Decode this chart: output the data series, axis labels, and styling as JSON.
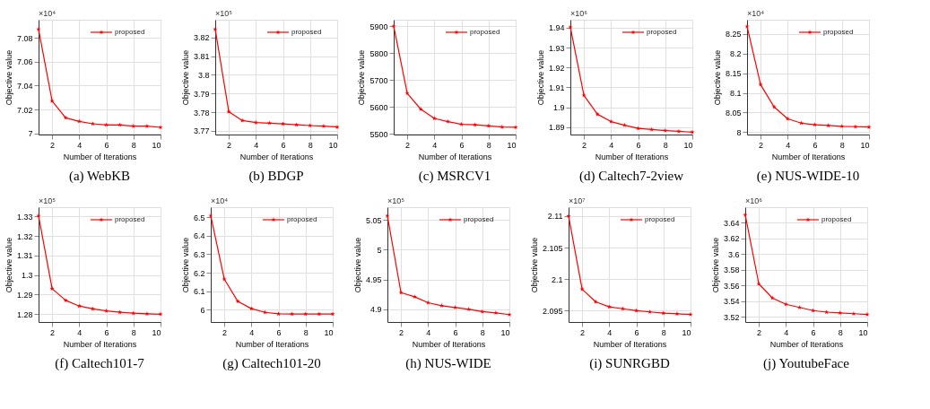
{
  "chart_data": [
    {
      "type": "line",
      "title": "(a) WebKB",
      "xlabel": "Number of Iterations",
      "ylabel": "Objective value",
      "annotations": [
        "×10⁴"
      ],
      "x": [
        1,
        2,
        3,
        4,
        5,
        6,
        7,
        8,
        9,
        10
      ],
      "xlim": [
        1,
        10
      ],
      "xticks": [
        2,
        4,
        6,
        8,
        10
      ],
      "ylim": [
        6.999,
        7.095
      ],
      "yticks": [
        7,
        7.02,
        7.04,
        7.06,
        7.08
      ],
      "grid": true,
      "legend": "top right",
      "marker": "star",
      "series": [
        {
          "name": "proposed",
          "color": "#ff0000",
          "values": [
            7.087,
            7.027,
            7.013,
            7.01,
            7.008,
            7.007,
            7.007,
            7.006,
            7.006,
            7.005
          ]
        }
      ]
    },
    {
      "type": "line",
      "title": "(b) BDGP",
      "xlabel": "Number of Iterations",
      "ylabel": "Objective value",
      "annotations": [
        "×10⁵"
      ],
      "x": [
        1,
        2,
        3,
        4,
        5,
        6,
        7,
        8,
        9,
        10
      ],
      "xlim": [
        1,
        10
      ],
      "xticks": [
        2,
        4,
        6,
        8,
        10
      ],
      "ylim": [
        3.768,
        3.8295
      ],
      "yticks": [
        3.77,
        3.78,
        3.79,
        3.8,
        3.81,
        3.82
      ],
      "grid": true,
      "legend": "top right",
      "marker": "star",
      "series": [
        {
          "name": "proposed",
          "color": "#ff0000",
          "values": [
            3.8244,
            3.7802,
            3.7755,
            3.7744,
            3.7741,
            3.7737,
            3.7732,
            3.7728,
            3.7725,
            3.772
          ]
        }
      ]
    },
    {
      "type": "line",
      "title": "(c) MSRCV1",
      "xlabel": "Number of Iterations",
      "ylabel": "Objective value",
      "x": [
        1,
        2,
        3,
        4,
        5,
        6,
        7,
        8,
        9,
        10
      ],
      "xlim": [
        1,
        10
      ],
      "xticks": [
        2,
        4,
        6,
        8,
        10
      ],
      "ylim": [
        5498,
        5924
      ],
      "yticks": [
        5500,
        5600,
        5700,
        5800,
        5900
      ],
      "grid": true,
      "legend": "top right",
      "marker": "star",
      "series": [
        {
          "name": "proposed",
          "color": "#ff0000",
          "values": [
            5900,
            5651,
            5592,
            5558,
            5546,
            5536,
            5534,
            5530,
            5526,
            5525
          ]
        }
      ]
    },
    {
      "type": "line",
      "title": "(d) Caltech7-2view",
      "xlabel": "Number of Iterations",
      "ylabel": "Objective value",
      "annotations": [
        "×10⁶"
      ],
      "x": [
        1,
        2,
        3,
        4,
        5,
        6,
        7,
        8,
        9,
        10
      ],
      "xlim": [
        1,
        10
      ],
      "xticks": [
        2,
        4,
        6,
        8,
        10
      ],
      "ylim": [
        1.8863,
        1.944
      ],
      "yticks": [
        1.89,
        1.9,
        1.91,
        1.92,
        1.93,
        1.94
      ],
      "grid": true,
      "legend": "top right",
      "marker": "star",
      "series": [
        {
          "name": "proposed",
          "color": "#ff0000",
          "values": [
            1.9402,
            1.906,
            1.8965,
            1.8928,
            1.891,
            1.8894,
            1.8888,
            1.8883,
            1.8879,
            1.8875
          ]
        }
      ]
    },
    {
      "type": "line",
      "title": "(e) NUS-WIDE-10",
      "xlabel": "Number of Iterations",
      "ylabel": "Objective value",
      "annotations": [
        "×10⁴"
      ],
      "x": [
        1,
        2,
        3,
        4,
        5,
        6,
        7,
        8,
        9,
        10
      ],
      "xlim": [
        1,
        10
      ],
      "xticks": [
        2,
        4,
        6,
        8,
        10
      ],
      "ylim": [
        7.994,
        8.286
      ],
      "yticks": [
        8,
        8.05,
        8.1,
        8.15,
        8.2,
        8.25
      ],
      "grid": true,
      "legend": "top right",
      "marker": "star",
      "series": [
        {
          "name": "proposed",
          "color": "#ff0000",
          "values": [
            8.269,
            8.121,
            8.064,
            8.034,
            8.023,
            8.019,
            8.017,
            8.015,
            8.014,
            8.013
          ]
        }
      ]
    },
    {
      "type": "line",
      "title": "(f) Caltech101-7",
      "xlabel": "Number of Iterations",
      "ylabel": "Objective value",
      "annotations": [
        "×10⁵"
      ],
      "x": [
        1,
        2,
        3,
        4,
        5,
        6,
        7,
        8,
        9,
        10
      ],
      "xlim": [
        1,
        10
      ],
      "xticks": [
        2,
        4,
        6,
        8,
        10
      ],
      "ylim": [
        1.2759,
        1.3348
      ],
      "yticks": [
        1.28,
        1.29,
        1.3,
        1.31,
        1.32,
        1.33
      ],
      "grid": true,
      "legend": "top right",
      "marker": "star",
      "series": [
        {
          "name": "proposed",
          "color": "#ff0000",
          "values": [
            1.3304,
            1.293,
            1.287,
            1.2841,
            1.2826,
            1.2816,
            1.2809,
            1.2804,
            1.2801,
            1.2799
          ]
        }
      ]
    },
    {
      "type": "line",
      "title": "(g) Caltech101-20",
      "xlabel": "Number of Iterations",
      "ylabel": "Objective value",
      "annotations": [
        "×10⁴"
      ],
      "x": [
        1,
        2,
        3,
        4,
        5,
        6,
        7,
        8,
        9,
        10
      ],
      "xlim": [
        1,
        10
      ],
      "xticks": [
        2,
        4,
        6,
        8,
        10
      ],
      "ylim": [
        5.934,
        6.554
      ],
      "yticks": [
        6,
        6.1,
        6.2,
        6.3,
        6.4,
        6.5
      ],
      "grid": true,
      "legend": "top right",
      "marker": "star",
      "series": [
        {
          "name": "proposed",
          "color": "#ff0000",
          "values": [
            6.508,
            6.165,
            6.045,
            6.006,
            5.986,
            5.978,
            5.977,
            5.977,
            5.977,
            5.977
          ]
        }
      ]
    },
    {
      "type": "line",
      "title": "(h) NUS-WIDE",
      "xlabel": "Number of Iterations",
      "ylabel": "Objective value",
      "annotations": [
        "×10⁵"
      ],
      "x": [
        1,
        2,
        3,
        4,
        5,
        6,
        7,
        8,
        9,
        10
      ],
      "xlim": [
        1,
        10
      ],
      "xticks": [
        2,
        4,
        6,
        8,
        10
      ],
      "ylim": [
        4.8786,
        5.0716
      ],
      "yticks": [
        4.9,
        4.95,
        5,
        5.05
      ],
      "grid": true,
      "legend": "top right",
      "marker": "star",
      "series": [
        {
          "name": "proposed",
          "color": "#ff0000",
          "values": [
            5.057,
            4.928,
            4.921,
            4.911,
            4.906,
            4.903,
            4.9,
            4.896,
            4.894,
            4.891
          ]
        }
      ]
    },
    {
      "type": "line",
      "title": "(i) SUNRGBD",
      "xlabel": "Number of Iterations",
      "ylabel": "Objective value",
      "annotations": [
        "×10⁷"
      ],
      "x": [
        1,
        2,
        3,
        4,
        5,
        6,
        7,
        8,
        9,
        10
      ],
      "xlim": [
        1,
        10
      ],
      "xticks": [
        2,
        4,
        6,
        8,
        10
      ],
      "ylim": [
        2.0932,
        2.1114
      ],
      "yticks": [
        2.095,
        2.1,
        2.105,
        2.11
      ],
      "grid": true,
      "legend": "top right",
      "marker": "star",
      "series": [
        {
          "name": "proposed",
          "color": "#ff0000",
          "values": [
            2.11,
            2.0984,
            2.0964,
            2.0956,
            2.0953,
            2.095,
            2.0948,
            2.0946,
            2.0945,
            2.0944
          ]
        }
      ]
    },
    {
      "type": "line",
      "title": "(j) YoutubeFace",
      "xlabel": "Number of Iterations",
      "ylabel": "Objective value",
      "annotations": [
        "×10⁶"
      ],
      "x": [
        1,
        2,
        3,
        4,
        5,
        6,
        7,
        8,
        9,
        10
      ],
      "xlim": [
        1,
        10
      ],
      "xticks": [
        2,
        4,
        6,
        8,
        10
      ],
      "ylim": [
        3.5134,
        3.6598
      ],
      "yticks": [
        3.52,
        3.54,
        3.56,
        3.58,
        3.6,
        3.62,
        3.64
      ],
      "grid": true,
      "legend": "top right",
      "marker": "star",
      "series": [
        {
          "name": "proposed",
          "color": "#ff0000",
          "values": [
            3.65,
            3.562,
            3.544,
            3.536,
            3.532,
            3.528,
            3.526,
            3.525,
            3.524,
            3.523
          ]
        }
      ]
    }
  ]
}
